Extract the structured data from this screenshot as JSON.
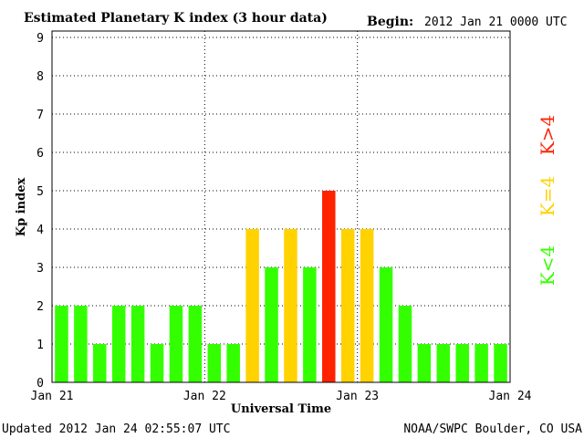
{
  "header": {
    "title": "Estimated Planetary K index (3 hour data)",
    "begin_label": "Begin:",
    "begin_value": "2012 Jan 21 0000 UTC"
  },
  "footer": {
    "updated": "Updated 2012 Jan 24 02:55:07 UTC",
    "source": "NOAA/SWPC Boulder, CO USA"
  },
  "legend": {
    "low": "K<4",
    "mid": "K=4",
    "high": "K>4"
  },
  "colors": {
    "low": "#33ff00",
    "mid": "#ffd200",
    "high": "#ff2200"
  },
  "chart_data": {
    "type": "bar",
    "xlabel": "Universal Time",
    "ylabel": "Kp index",
    "ylim": [
      0,
      9
    ],
    "yticks": [
      "0",
      "1",
      "2",
      "3",
      "4",
      "5",
      "6",
      "7",
      "8",
      "9"
    ],
    "xticks": [
      "Jan 21",
      "Jan 22",
      "Jan 23",
      "Jan 24"
    ],
    "grid": true,
    "values": [
      2,
      2,
      1,
      2,
      2,
      1,
      2,
      2,
      1,
      1,
      4,
      3,
      4,
      3,
      5,
      4,
      4,
      3,
      2,
      1,
      1,
      1,
      1,
      1
    ]
  }
}
